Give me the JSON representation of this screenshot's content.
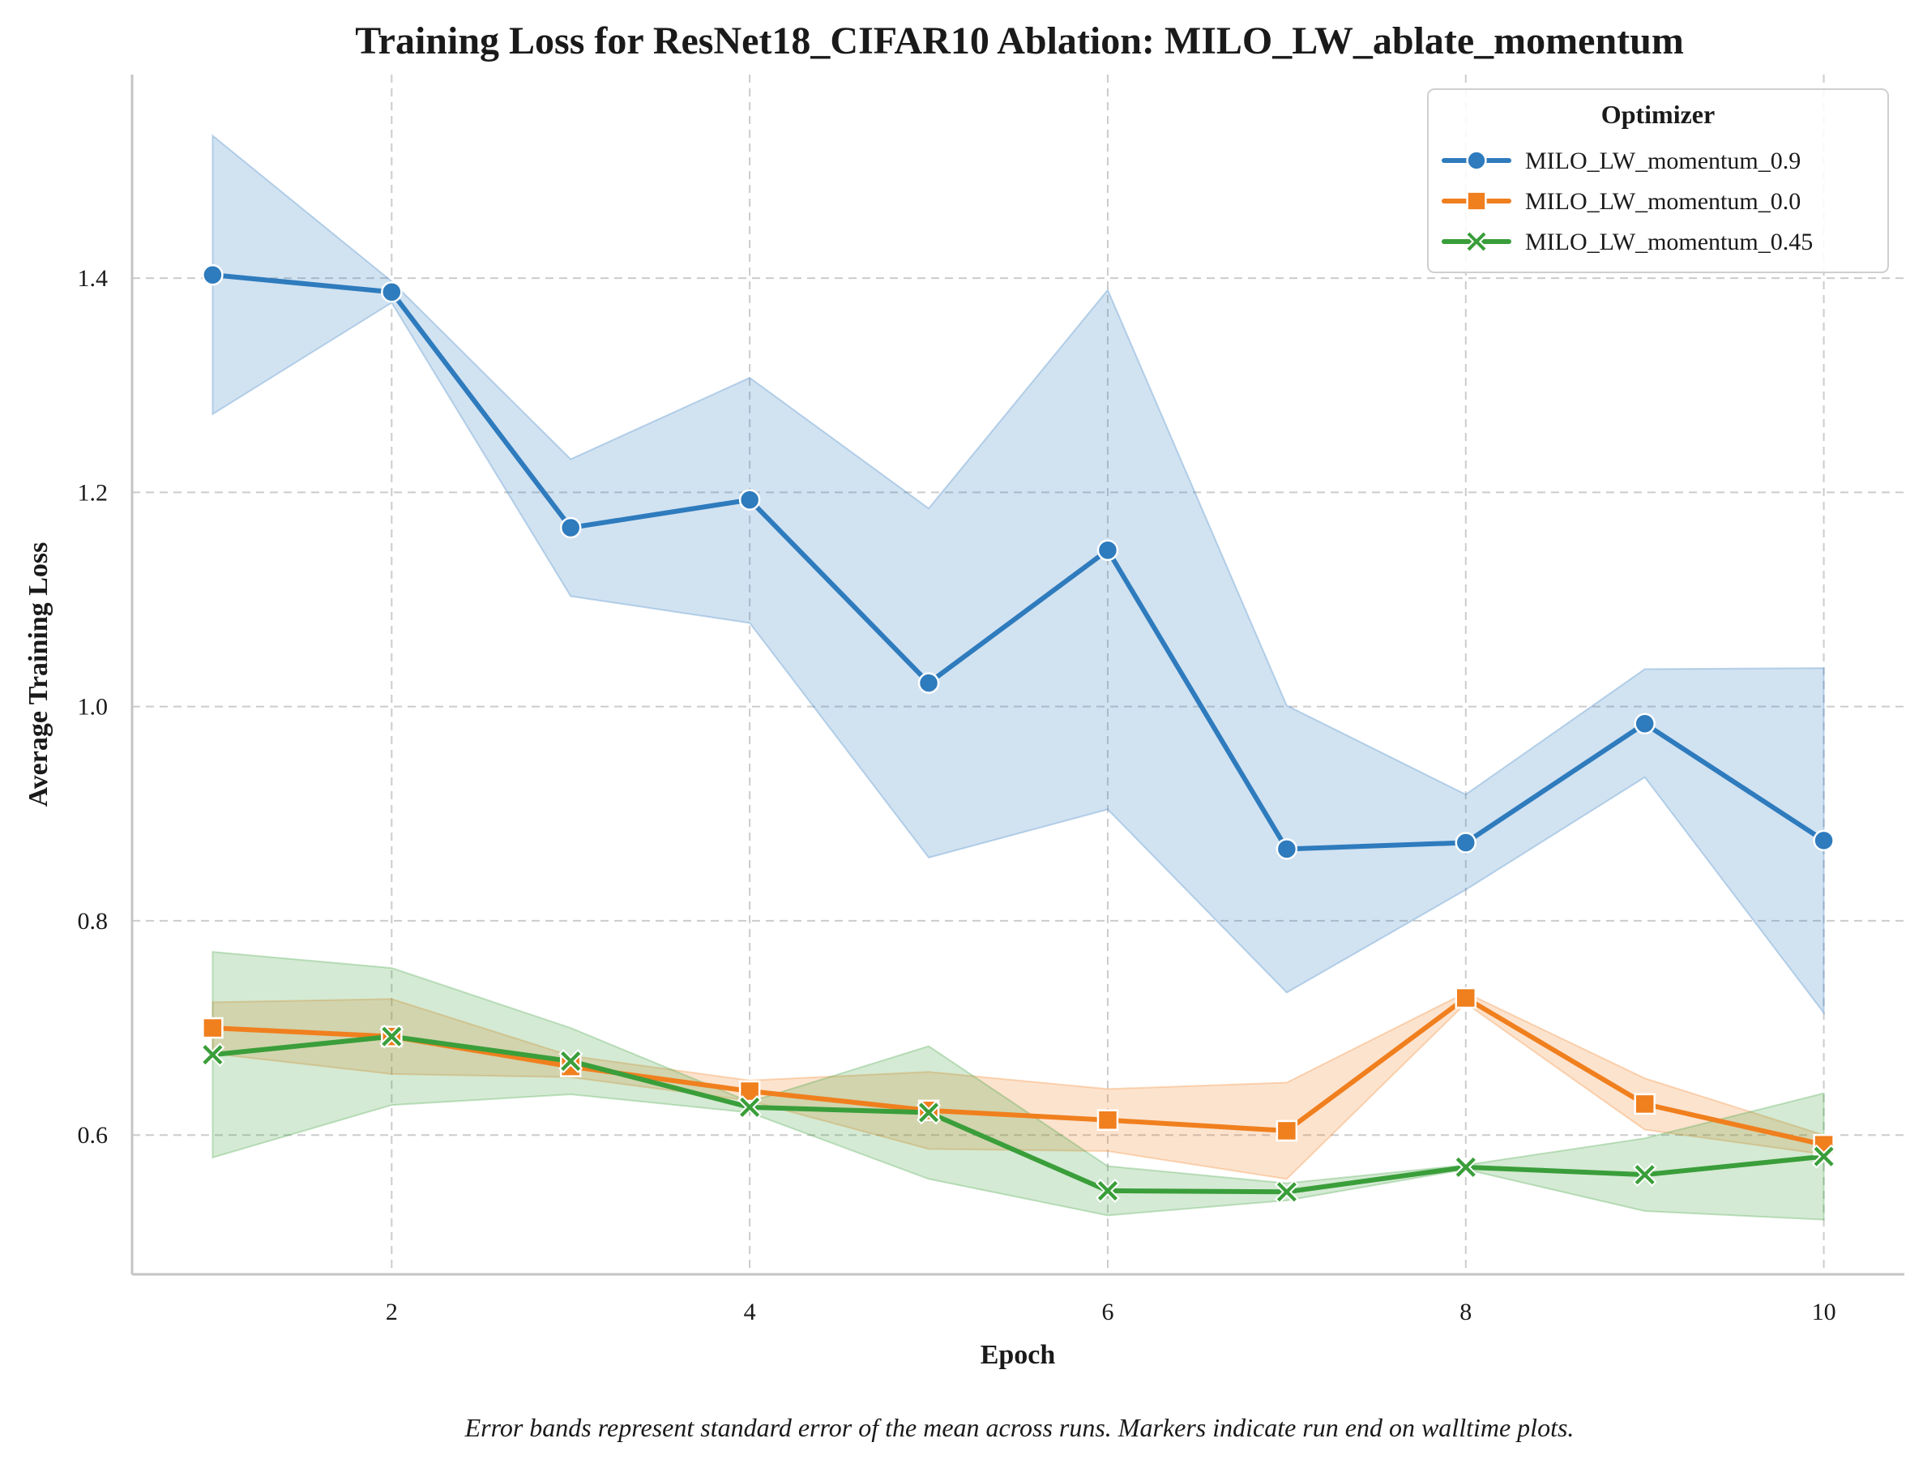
{
  "chart_data": {
    "type": "line",
    "title": "Training Loss for ResNet18_CIFAR10 Ablation: MILO_LW_ablate_momentum",
    "xlabel": "Epoch",
    "ylabel": "Average Training Loss",
    "xlim": [
      0.55,
      10.45
    ],
    "ylim": [
      0.47,
      1.59
    ],
    "xticks": [
      2,
      4,
      6,
      8,
      10
    ],
    "xtick_labels": [
      "2",
      "4",
      "6",
      "8",
      "10"
    ],
    "yticks": [
      0.6,
      0.8,
      1.0,
      1.2,
      1.4
    ],
    "ytick_labels": [
      "0.6",
      "0.8",
      "1.0",
      "1.2",
      "1.4"
    ],
    "grid": true,
    "legend": {
      "title": "Optimizer",
      "placement": "top-right"
    },
    "caption": "Error bands represent standard error of the mean across runs. Markers indicate run end on walltime plots.",
    "x": [
      1,
      2,
      3,
      4,
      5,
      6,
      7,
      8,
      9,
      10
    ],
    "series": [
      {
        "name": "MILO_LW_momentum_0.9",
        "color": "#2e7bbd",
        "marker": "circle",
        "values": [
          1.403,
          1.387,
          1.167,
          1.193,
          1.022,
          1.146,
          0.867,
          0.873,
          0.984,
          0.875
        ],
        "lower": [
          1.273,
          1.377,
          1.103,
          1.078,
          0.859,
          0.904,
          0.733,
          0.829,
          0.934,
          0.714
        ],
        "upper": [
          1.533,
          1.397,
          1.231,
          1.307,
          1.185,
          1.389,
          1.001,
          0.918,
          1.035,
          1.036
        ]
      },
      {
        "name": "MILO_LW_momentum_0.0",
        "color": "#f07f1e",
        "marker": "square",
        "values": [
          0.7,
          0.692,
          0.664,
          0.641,
          0.623,
          0.614,
          0.604,
          0.728,
          0.629,
          0.591
        ],
        "lower": [
          0.676,
          0.657,
          0.654,
          0.632,
          0.587,
          0.585,
          0.559,
          0.723,
          0.605,
          0.582
        ],
        "upper": [
          0.724,
          0.727,
          0.674,
          0.651,
          0.659,
          0.643,
          0.649,
          0.733,
          0.653,
          0.6
        ]
      },
      {
        "name": "MILO_LW_momentum_0.45",
        "color": "#3a9e3a",
        "marker": "x",
        "values": [
          0.675,
          0.692,
          0.669,
          0.626,
          0.621,
          0.548,
          0.547,
          0.57,
          0.563,
          0.58
        ],
        "lower": [
          0.579,
          0.628,
          0.638,
          0.621,
          0.559,
          0.525,
          0.539,
          0.568,
          0.529,
          0.521
        ],
        "upper": [
          0.771,
          0.756,
          0.7,
          0.631,
          0.683,
          0.571,
          0.555,
          0.572,
          0.597,
          0.639
        ]
      }
    ]
  }
}
